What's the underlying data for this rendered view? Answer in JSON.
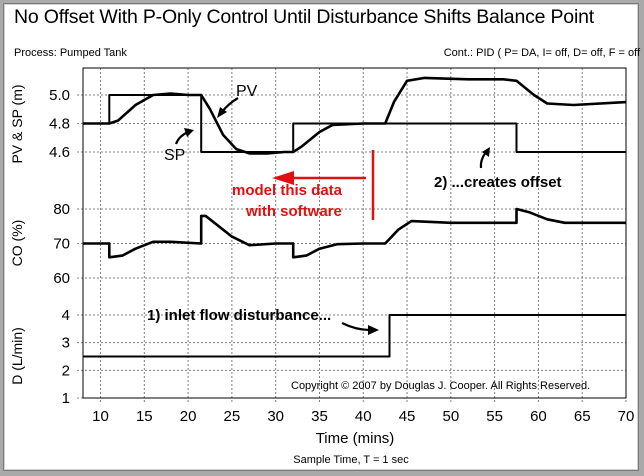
{
  "title": "No Offset With P-Only Control Until Disturbance Shifts Balance Point",
  "process_label": "Process: Pumped Tank",
  "controller_label": "Cont.: PID ( P= DA, I= off, D= off, F = off",
  "copyright": "Copyright © 2007 by Douglas J. Cooper. All Rights Reserved.",
  "x_axis": {
    "label": "Time (mins)",
    "sample_time": "Sample Time, T = 1 sec",
    "ticks": [
      "10",
      "15",
      "20",
      "25",
      "30",
      "35",
      "40",
      "45",
      "50",
      "55",
      "60",
      "65",
      "70"
    ]
  },
  "panels": {
    "pv_sp": {
      "ylabel": "PV & SP (m)",
      "ticks": [
        "5.0",
        "4.8",
        "4.6"
      ]
    },
    "co": {
      "ylabel": "CO (%)",
      "ticks": [
        "80",
        "70",
        "60"
      ]
    },
    "d": {
      "ylabel": "D (L/min)",
      "ticks": [
        "4",
        "3",
        "2",
        "1"
      ]
    }
  },
  "annotations": {
    "pv": "PV",
    "sp": "SP",
    "model_line1": "model this data",
    "model_line2": "with software",
    "offset": "2) ...creates offset",
    "disturbance": "1) inlet flow disturbance..."
  },
  "colors": {
    "line": "#000000",
    "grid": "#808080",
    "annotation_red": "#e01010"
  },
  "chart_data": {
    "type": "line",
    "title": "No Offset With P-Only Control Until Disturbance Shifts Balance Point",
    "xlabel": "Time (mins)",
    "xlim": [
      8,
      70
    ],
    "grid": true,
    "subplots": [
      {
        "ylabel": "PV & SP (m)",
        "ylim": [
          4.5,
          5.15
        ],
        "series": [
          {
            "name": "SP",
            "x": [
              8,
              11,
              11,
              21.5,
              21.5,
              32,
              32,
              57.5,
              57.5,
              70
            ],
            "values": [
              4.8,
              4.8,
              5.0,
              5.0,
              4.6,
              4.6,
              4.8,
              4.8,
              4.6,
              4.6
            ]
          },
          {
            "name": "PV",
            "x": [
              8,
              11,
              12,
              14,
              16,
              18,
              20,
              21.5,
              22.5,
              24,
              25.5,
              27,
              29,
              31,
              32,
              33,
              35,
              36.5,
              40,
              42.5,
              43.5,
              45,
              47,
              52,
              56,
              57.5,
              59.5,
              61,
              64,
              70
            ],
            "values": [
              4.8,
              4.8,
              4.82,
              4.93,
              5.0,
              5.01,
              5.0,
              5.0,
              4.9,
              4.72,
              4.62,
              4.59,
              4.59,
              4.6,
              4.6,
              4.64,
              4.74,
              4.79,
              4.8,
              4.8,
              4.95,
              5.1,
              5.12,
              5.11,
              5.11,
              5.1,
              5.0,
              4.94,
              4.93,
              4.95
            ]
          }
        ]
      },
      {
        "ylabel": "CO (%)",
        "ylim": [
          58,
          85
        ],
        "series": [
          {
            "name": "CO",
            "x": [
              8,
              11,
              11,
              12.5,
              14,
              16,
              18,
              21.5,
              21.5,
              22,
              23,
              25,
              27,
              30,
              32,
              32,
              33.5,
              35,
              37,
              40,
              42.5,
              44,
              45.5,
              50,
              57.5,
              57.5,
              59,
              61,
              63,
              70
            ],
            "values": [
              70,
              70,
              66,
              66.5,
              68.5,
              70.5,
              70.5,
              70,
              78,
              78,
              76,
              72,
              69.5,
              70,
              70,
              66,
              66.5,
              68.5,
              69.8,
              70,
              70,
              74,
              76.5,
              76,
              76,
              80,
              79,
              77,
              76,
              76
            ]
          }
        ]
      },
      {
        "ylabel": "D (L/min)",
        "ylim": [
          1,
          4.8
        ],
        "series": [
          {
            "name": "D",
            "x": [
              8,
              43,
              43,
              70
            ],
            "values": [
              2.5,
              2.5,
              4,
              4
            ]
          }
        ]
      }
    ],
    "annotations": [
      "PV",
      "SP",
      "model this data with software",
      "2) ...creates offset",
      "1) inlet flow disturbance..."
    ]
  }
}
